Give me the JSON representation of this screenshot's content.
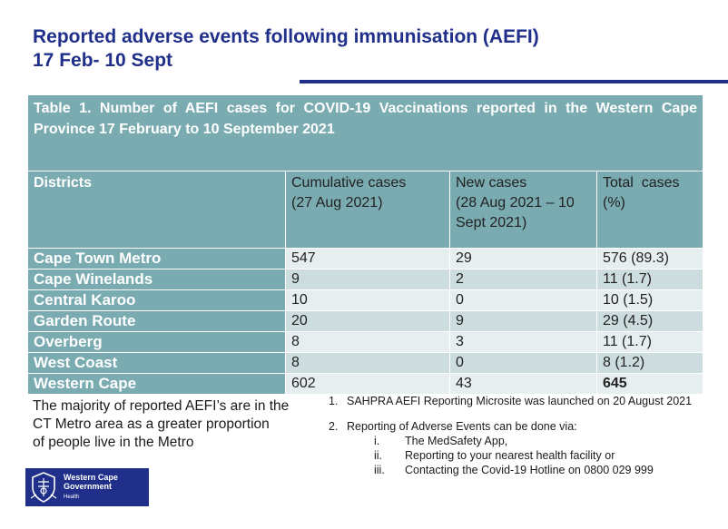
{
  "slide": {
    "title_line1": "Reported adverse events following immunisation (AEFI)",
    "title_line2": "17 Feb- 10 Sept"
  },
  "table": {
    "caption": "Table 1. Number of AEFI cases for COVID-19 Vaccinations reported in the Western Cape Province  17 February to 10 September 2021",
    "headers": {
      "districts": "Districts",
      "cumulative_line1": "Cumulative cases",
      "cumulative_line2": "(27 Aug 2021)",
      "new_line1": "New cases",
      "new_line2": "(28 Aug 2021 – 10",
      "new_line3": "Sept 2021)",
      "total_line1": "Total  cases",
      "total_line2": "(%)"
    },
    "rows": [
      {
        "district": "Cape Town Metro",
        "cumulative": "547",
        "new": "29",
        "total": "576 (89.3)"
      },
      {
        "district": "Cape Winelands",
        "cumulative": "9",
        "new": "2",
        "total": "11 (1.7)"
      },
      {
        "district": "Central Karoo",
        "cumulative": "10",
        "new": "0",
        "total": "10 (1.5)"
      },
      {
        "district": "Garden Route",
        "cumulative": "20",
        "new": "9",
        "total": "29 (4.5)"
      },
      {
        "district": "Overberg",
        "cumulative": "8",
        "new": "3",
        "total": "11 (1.7)"
      },
      {
        "district": "West Coast",
        "cumulative": "8",
        "new": "0",
        "total": "8 (1.2)"
      },
      {
        "district": "Western Cape",
        "cumulative": "602",
        "new": "43",
        "total": "645"
      }
    ]
  },
  "note_left": {
    "line1": "The majority of reported AEFI’s are in the",
    "line2": "CT Metro area as a greater proportion",
    "line3": "of people live in the Metro"
  },
  "notes_right": {
    "item1_num": "1.",
    "item1_text": "SAHPRA AEFI Reporting Microsite was launched on 20 August 2021",
    "item2_num": "2.",
    "item2_text": "Reporting of Adverse Events can be done via:",
    "sub": [
      {
        "roman": "i.",
        "text": "The MedSafety App,"
      },
      {
        "roman": "ii.",
        "text": "Reporting to your nearest health facility or"
      },
      {
        "roman": "iii.",
        "text": "Contacting the Covid-19 Hotline on 0800 029 999"
      }
    ]
  },
  "logo": {
    "line1": "Western Cape",
    "line2": "Government",
    "line3": "Health"
  },
  "colors": {
    "title": "#1f2f8a",
    "table_header": "#7aabb0",
    "row_light": "#e7eef0",
    "row_dark": "#cddddf",
    "logo_bg": "#1f2f8a"
  }
}
